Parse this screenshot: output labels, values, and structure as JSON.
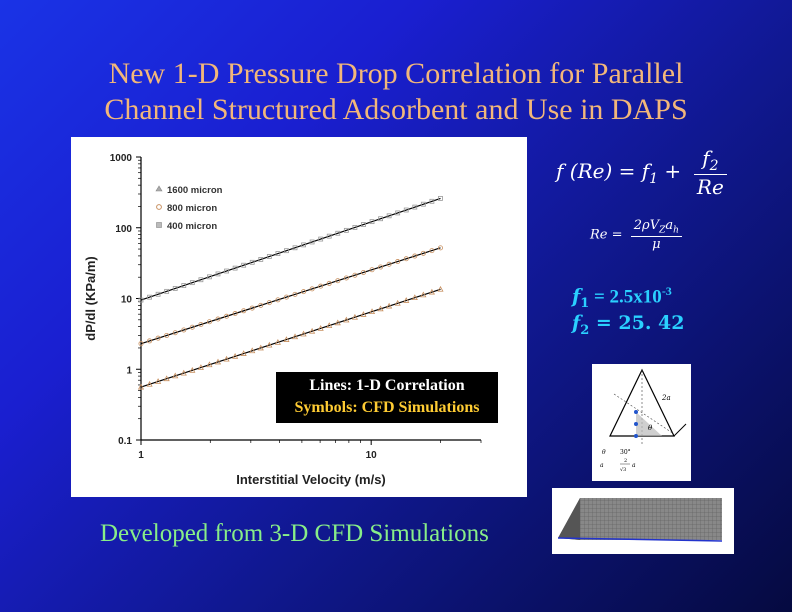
{
  "slide": {
    "title_line1": "New 1-D Pressure Drop Correlation for Parallel",
    "title_line2": "Channel Structured Adsorbent and Use in DAPS",
    "footer": "Developed from 3-D CFD Simulations",
    "overlay_line1": "Lines: 1-D Correlation",
    "overlay_line2": "Symbols: CFD Simulations"
  },
  "equations": {
    "main_lhs": "f (Re) = f",
    "main_sub": "1",
    "main_plus": " + ",
    "main_num": "f",
    "main_num_sub": "2",
    "main_den": "Re",
    "re_lhs": "Re = ",
    "re_num": "2ρV",
    "re_num_sub": "Z",
    "re_num_tail": "a",
    "re_num_tail_sub": "h",
    "re_den": "μ",
    "f1_name": "f",
    "f1_sub": "1",
    "f1_value": " = 2.5x10",
    "f1_exp": "-3",
    "f2_name": "f",
    "f2_sub": "2",
    "f2_value": " = 25. 42"
  },
  "diagram": {
    "label_2a": "2a",
    "label_theta": "θ",
    "label_30": "30°",
    "label_ah": "a",
    "label_frac_top": "2",
    "label_frac_bot": "√3",
    "label_a": "a",
    "label_theta_bottom": "θ"
  },
  "chart_data": {
    "type": "scatter",
    "xlabel": "Interstitial Velocity (m/s)",
    "ylabel": "dP/dl (KPa/m)",
    "xscale": "log",
    "yscale": "log",
    "xlim": [
      1,
      30
    ],
    "ylim": [
      0.1,
      1000
    ],
    "x_ticks": [
      "1",
      "10"
    ],
    "y_ticks": [
      "0.1",
      "1",
      "10",
      "100",
      "1000"
    ],
    "legend_position": "top-left",
    "series": [
      {
        "name": "1600 micron",
        "marker": "triangle",
        "x_start": 1,
        "x_end": 20,
        "y_start": 0.56,
        "y_end": 13.5
      },
      {
        "name": "800 micron",
        "marker": "circle",
        "x_start": 1,
        "x_end": 20,
        "y_start": 2.3,
        "y_end": 52
      },
      {
        "name": "400 micron",
        "marker": "square",
        "x_start": 1,
        "x_end": 20,
        "y_start": 9.5,
        "y_end": 260
      }
    ],
    "line_color": "#000000",
    "marker_color": "#c89060"
  }
}
